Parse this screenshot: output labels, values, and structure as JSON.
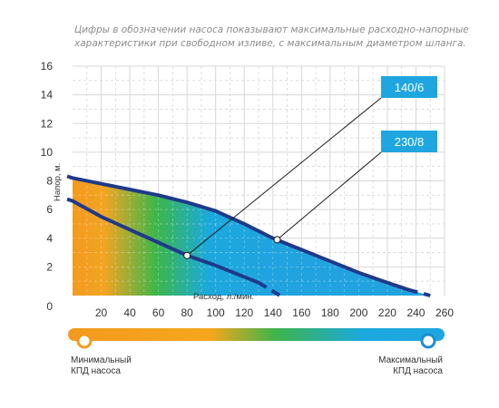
{
  "note": {
    "line1": "Цифры в обозначении насоса показывают максимальные расходно-напорные",
    "line2": "характеристики при свободном изливе, с максимальным диаметром шланга."
  },
  "chart_data": {
    "type": "line",
    "xlabel": "Расход, л./мин.",
    "ylabel": "Напор, м.",
    "xlim": [
      0,
      260
    ],
    "ylim": [
      0,
      16
    ],
    "xticks": [
      "20",
      "40",
      "60",
      "80",
      "100",
      "120",
      "140",
      "160",
      "180",
      "200",
      "220",
      "240",
      "260"
    ],
    "yticks": [
      "0",
      "2",
      "4",
      "6",
      "8",
      "10",
      "12",
      "14",
      "16"
    ],
    "grid": true,
    "series": [
      {
        "name": "140/6",
        "points": [
          [
            0,
            6.6
          ],
          [
            20,
            5.5
          ],
          [
            40,
            4.6
          ],
          [
            60,
            3.7
          ],
          [
            80,
            2.8
          ],
          [
            100,
            2.1
          ],
          [
            120,
            1.3
          ],
          [
            130,
            0.9
          ]
        ],
        "extrapolated_to": [
          145,
          0
        ],
        "marker": [
          80,
          2.8
        ]
      },
      {
        "name": "230/8",
        "points": [
          [
            0,
            8.2
          ],
          [
            20,
            7.8
          ],
          [
            40,
            7.4
          ],
          [
            60,
            7.0
          ],
          [
            80,
            6.5
          ],
          [
            100,
            5.9
          ],
          [
            120,
            5.0
          ],
          [
            140,
            4.0
          ],
          [
            160,
            3.2
          ],
          [
            180,
            2.4
          ],
          [
            200,
            1.6
          ],
          [
            220,
            0.9
          ],
          [
            235,
            0.4
          ]
        ],
        "extrapolated_to": [
          250,
          0
        ],
        "marker": [
          143,
          3.9
        ]
      }
    ],
    "efficiency_scale": {
      "min_label": "Минимальный КПД насоса",
      "max_label": "Максимальный КПД насоса",
      "colors": [
        "#f39a1e",
        "#f6a51d",
        "#2fb24f",
        "#1ba9dd",
        "#1fa6e0"
      ]
    }
  },
  "scale": {
    "min_line1": "Минимальный",
    "min_line2": "КПД насоса",
    "max_line1": "Максимальный",
    "max_line2": "КПД насоса"
  }
}
